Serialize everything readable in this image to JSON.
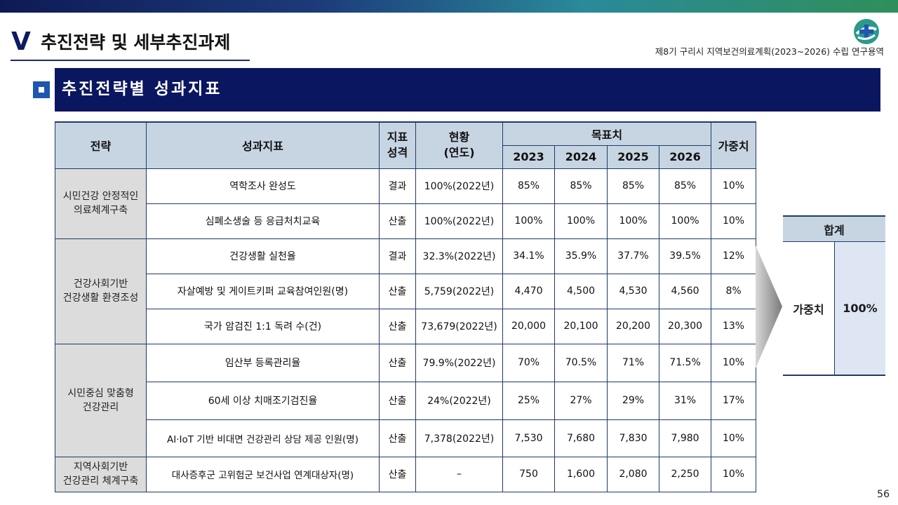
{
  "header": {
    "section_mark": "V",
    "section_title": "추진전략 및 세부추진과제",
    "project_name": "제8기 구리시 지역보건의료계획(2023~2026) 수립 연구용역"
  },
  "subsection": {
    "title": "추진전략별 성과지표"
  },
  "table": {
    "headers": {
      "strategy": "전략",
      "indicator": "성과지표",
      "type": "지표\n성격",
      "current": "현황\n(연도)",
      "target": "목표치",
      "years": [
        "2023",
        "2024",
        "2025",
        "2026"
      ],
      "weight": "가중치"
    },
    "groups": [
      {
        "strategy": "시민건강 안정적인\n의료체계구축",
        "rows": [
          {
            "indicator": "역학조사 완성도",
            "type": "결과",
            "current": "100%(2022년)",
            "targets": [
              "85%",
              "85%",
              "85%",
              "85%"
            ],
            "weight": "10%"
          },
          {
            "indicator": "심폐소생술 등 응급처치교육",
            "type": "산출",
            "current": "100%(2022년)",
            "targets": [
              "100%",
              "100%",
              "100%",
              "100%"
            ],
            "weight": "10%"
          }
        ]
      },
      {
        "strategy": "건강사회기반\n건강생활 환경조성",
        "rows": [
          {
            "indicator": "건강생활 실천율",
            "type": "결과",
            "current": "32.3%(2022년)",
            "targets": [
              "34.1%",
              "35.9%",
              "37.7%",
              "39.5%"
            ],
            "weight": "12%"
          },
          {
            "indicator": "자살예방 및 게이트키퍼 교육참여인원(명)",
            "type": "산출",
            "current": "5,759(2022년)",
            "targets": [
              "4,470",
              "4,500",
              "4,530",
              "4,560"
            ],
            "weight": "8%"
          },
          {
            "indicator": "국가 암검진 1:1 독려 수(건)",
            "type": "산출",
            "current": "73,679(2022년)",
            "targets": [
              "20,000",
              "20,100",
              "20,200",
              "20,300"
            ],
            "weight": "13%"
          }
        ]
      },
      {
        "strategy": "시민중심 맞춤형\n건강관리",
        "rows": [
          {
            "indicator": "임산부 등록관리율",
            "type": "산출",
            "current": "79.9%(2022년)",
            "targets": [
              "70%",
              "70.5%",
              "71%",
              "71.5%"
            ],
            "weight": "10%"
          },
          {
            "indicator": "60세 이상 치매조기검진율",
            "type": "산출",
            "current": "24%(2022년)",
            "targets": [
              "25%",
              "27%",
              "29%",
              "31%"
            ],
            "weight": "17%"
          },
          {
            "indicator": "AI·IoT 기반 비대면 건강관리 상담 제공 인원(명)",
            "type": "산출",
            "current": "7,378(2022년)",
            "targets": [
              "7,530",
              "7,680",
              "7,830",
              "7,980"
            ],
            "weight": "10%"
          }
        ]
      },
      {
        "strategy": "지역사회기반\n건강관리 체계구축",
        "rows": [
          {
            "indicator": "대사증후군 고위험군 보건사업 연계대상자(명)",
            "type": "산출",
            "current": "–",
            "targets": [
              "750",
              "1,600",
              "2,080",
              "2,250"
            ],
            "weight": "10%"
          }
        ]
      }
    ]
  },
  "total": {
    "header": "합계",
    "label": "가중치",
    "value": "100%"
  },
  "page_number": "56",
  "colors": {
    "banner": "#0b1660",
    "header_fill": "#c7d5e3",
    "strategy_fill": "#dcdcdc",
    "accent_blue": "#1e56b0"
  }
}
